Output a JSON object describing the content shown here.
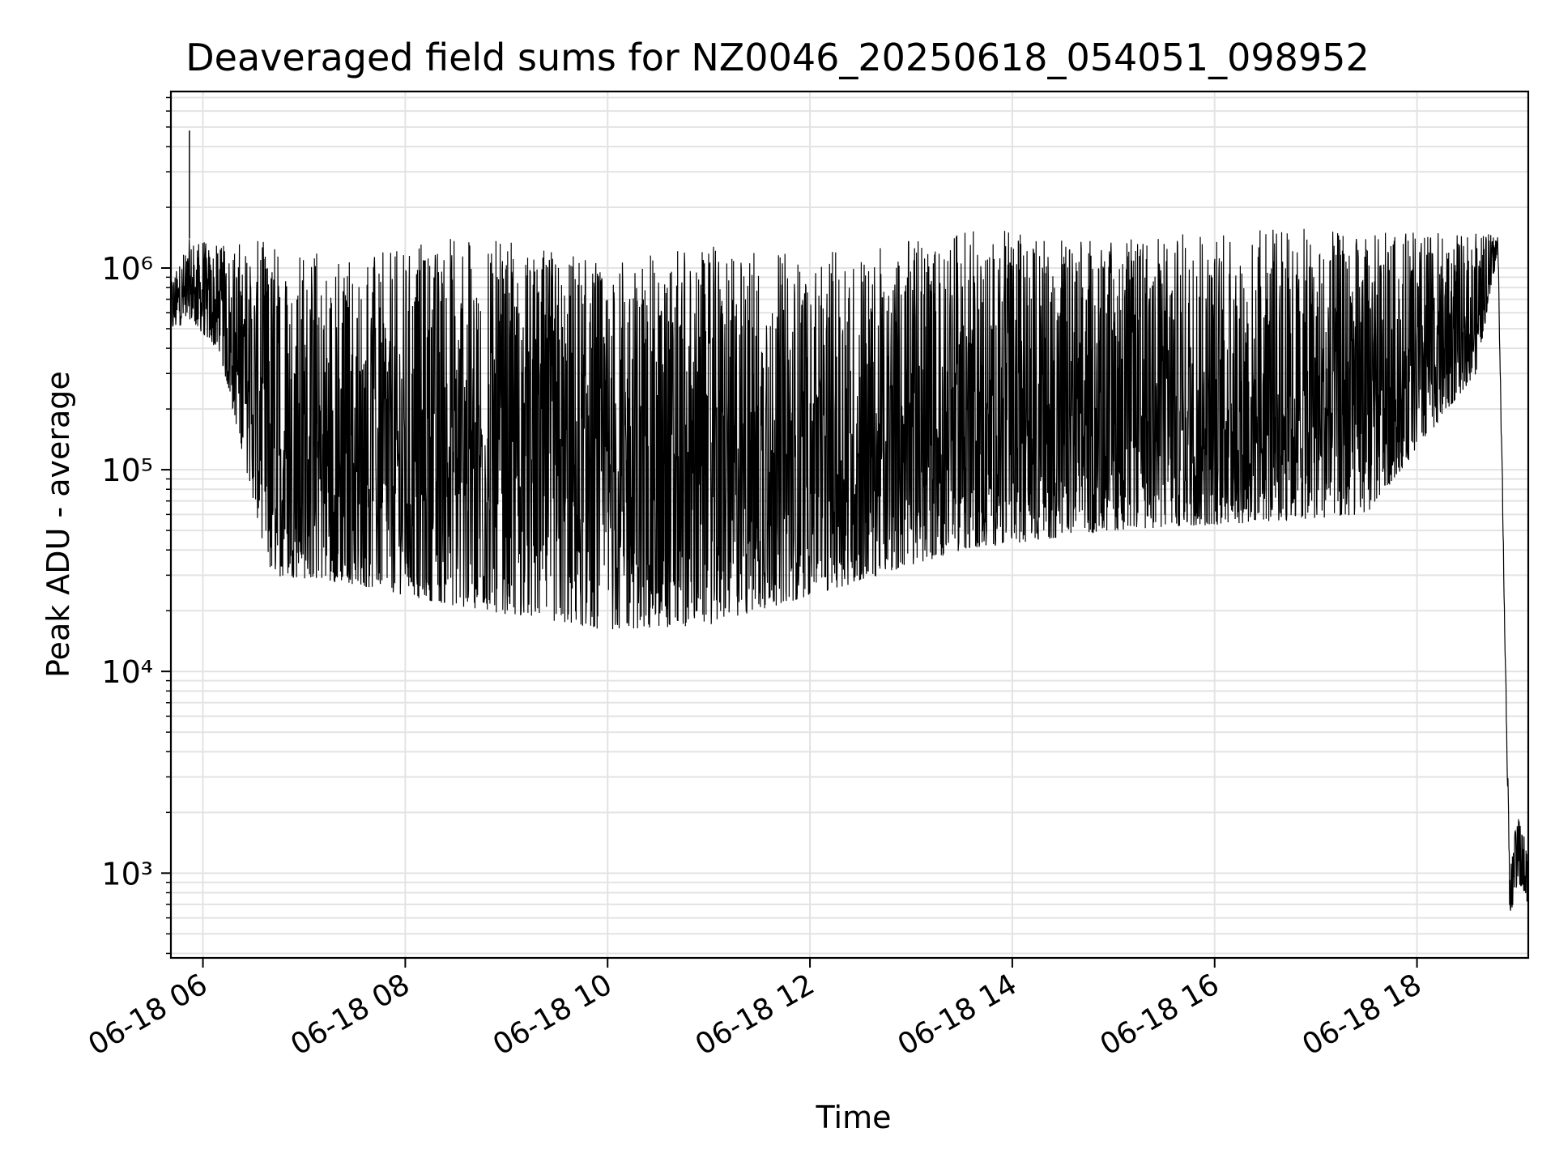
{
  "chart_data": {
    "type": "line",
    "title": "Deaveraged field sums for NZ0046_20250618_054051_098952",
    "xlabel": "Time",
    "ylabel": "Peak ADU - average",
    "yscale": "log",
    "grid": true,
    "x_range": [
      "06-18 05:41",
      "06-18 19:06"
    ],
    "ylim": [
      380,
      7500000
    ],
    "x_ticks": [
      "06-18 06",
      "06-18 08",
      "06-18 10",
      "06-18 12",
      "06-18 14",
      "06-18 16",
      "06-18 18"
    ],
    "y_ticks": [
      {
        "value": 1000,
        "label": "10³"
      },
      {
        "value": 10000,
        "label": "10⁴"
      },
      {
        "value": 100000,
        "label": "10⁵"
      },
      {
        "value": 1000000,
        "label": "10⁶"
      }
    ],
    "series": [
      {
        "color": "#000000",
        "envelope": {
          "description_points": [
            {
              "t": "06-18 05:41",
              "low": 480000,
              "high": 950000
            },
            {
              "t": "06-18 05:52",
              "low": 560000,
              "high": 1400000,
              "spike": 4800000
            },
            {
              "t": "06-18 06:10",
              "low": 380000,
              "high": 1300000
            },
            {
              "t": "06-18 06:40",
              "low": 30000,
              "high": 1400000
            },
            {
              "t": "06-18 07:30",
              "low": 27000,
              "high": 1100000
            },
            {
              "t": "06-18 08:30",
              "low": 21000,
              "high": 1500000
            },
            {
              "t": "06-18 10:00",
              "low": 16000,
              "high": 1100000
            },
            {
              "t": "06-18 11:00",
              "low": 17000,
              "high": 1300000
            },
            {
              "t": "06-18 12:30",
              "low": 28000,
              "high": 1200000
            },
            {
              "t": "06-18 13:30",
              "low": 40000,
              "high": 1600000
            },
            {
              "t": "06-18 15:00",
              "low": 50000,
              "high": 1400000
            },
            {
              "t": "06-18 16:30",
              "low": 55000,
              "high": 1600000
            },
            {
              "t": "06-18 17:30",
              "low": 60000,
              "high": 1500000
            },
            {
              "t": "06-18 18:35",
              "low": 300000,
              "high": 1500000
            },
            {
              "t": "06-18 18:48",
              "low": 1200000,
              "high": 1500000
            },
            {
              "t": "06-18 18:55",
              "low": 600,
              "high": 1000
            },
            {
              "t": "06-18 19:00",
              "low": 900,
              "high": 2200
            },
            {
              "t": "06-18 19:06",
              "low": 700,
              "high": 1300
            }
          ]
        }
      }
    ]
  },
  "style": {
    "line_color": "#000000",
    "grid_color": "#e3e3e3",
    "axis_color": "#000000",
    "background": "#ffffff"
  }
}
